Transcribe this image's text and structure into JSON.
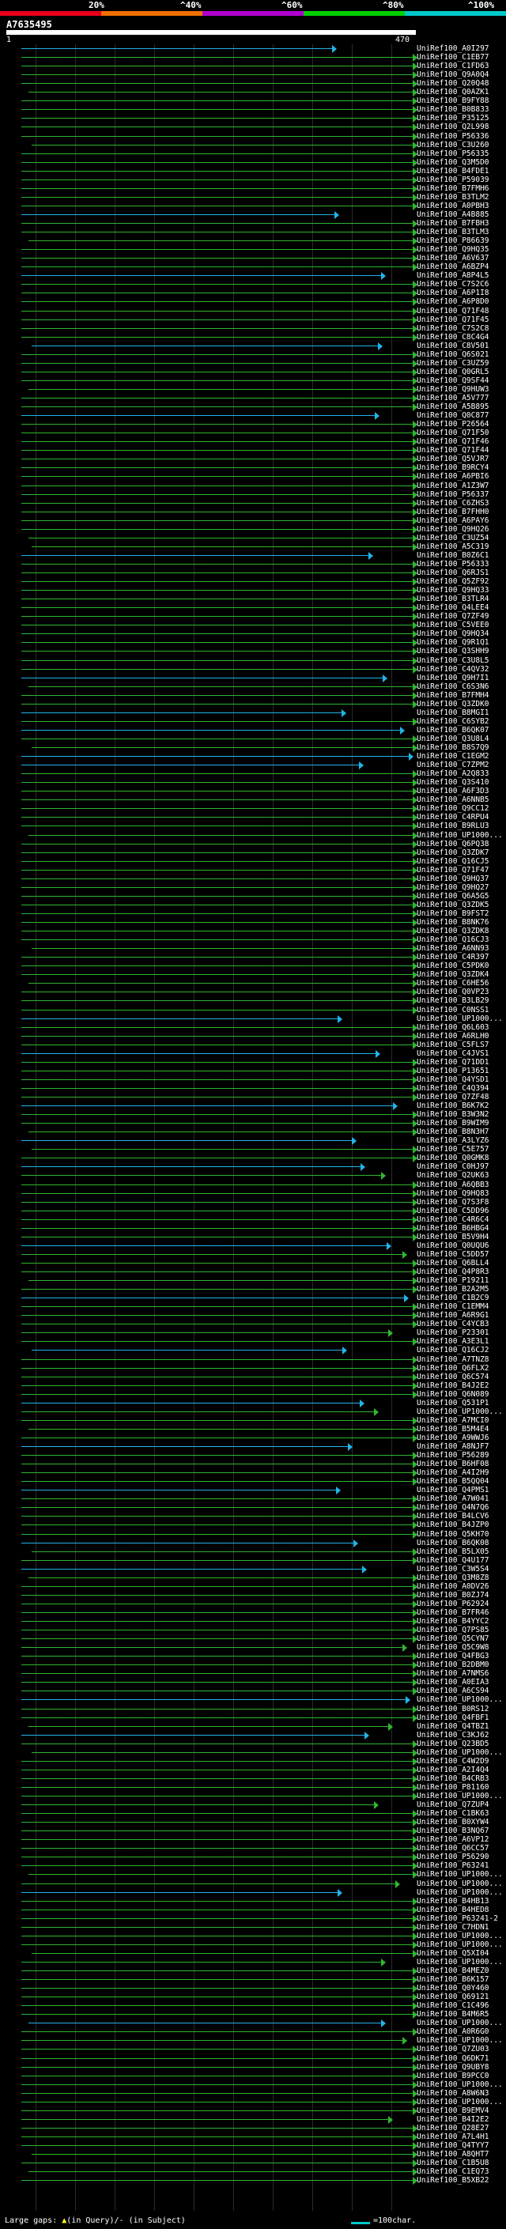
{
  "colors": {
    "scale": [
      "#e8001c",
      "#f07000",
      "#b000d0",
      "#00d000",
      "#00c8c8"
    ],
    "green": "#2fb62f",
    "cyan": "#22b4e8",
    "query_bar": "#ffffff"
  },
  "scale": {
    "labels": [
      "20%",
      "^40%",
      "^60%",
      "^80%",
      "^100%"
    ]
  },
  "query": {
    "name": "A7635495",
    "start": "1",
    "end": "470"
  },
  "hits": [
    {
      "label": "UniRef100_A0I297",
      "color": "cyan"
    },
    {
      "label": "UniRef100_C1EB77",
      "color": "green"
    },
    {
      "label": "UniRef100_C1FD63",
      "color": "green"
    },
    {
      "label": "UniRef100_Q9A0Q4",
      "color": "green"
    },
    {
      "label": "UniRef100_Q20Q48",
      "color": "green"
    },
    {
      "label": "UniRef100_Q0AZK1",
      "color": "green"
    },
    {
      "label": "UniRef100_B9FY88",
      "color": "green"
    },
    {
      "label": "UniRef100_B0B833",
      "color": "green"
    },
    {
      "label": "UniRef100_P35125",
      "color": "green"
    },
    {
      "label": "UniRef100_Q2L998",
      "color": "green"
    },
    {
      "label": "UniRef100_P56336",
      "color": "green"
    },
    {
      "label": "UniRef100_C3U260",
      "color": "green"
    },
    {
      "label": "UniRef100_P56335",
      "color": "green"
    },
    {
      "label": "UniRef100_Q3M5D0",
      "color": "green"
    },
    {
      "label": "UniRef100_B4FDE1",
      "color": "green"
    },
    {
      "label": "UniRef100_P59039",
      "color": "green"
    },
    {
      "label": "UniRef100_B7FMH6",
      "color": "green"
    },
    {
      "label": "UniRef100_B3TLM2",
      "color": "green"
    },
    {
      "label": "UniRef100_A0PBH3",
      "color": "green"
    },
    {
      "label": "UniRef100_A4B885",
      "color": "cyan"
    },
    {
      "label": "UniRef100_B7FBH3",
      "color": "green"
    },
    {
      "label": "UniRef100_B3TLM3",
      "color": "green"
    },
    {
      "label": "UniRef100_P86639",
      "color": "green"
    },
    {
      "label": "UniRef100_Q9HQ35",
      "color": "green"
    },
    {
      "label": "UniRef100_A6V637",
      "color": "green"
    },
    {
      "label": "UniRef100_A6BZP4",
      "color": "green"
    },
    {
      "label": "UniRef100_A8P4L5",
      "color": "cyan"
    },
    {
      "label": "UniRef100_C7S2C6",
      "color": "green"
    },
    {
      "label": "UniRef100_A6P1I8",
      "color": "green"
    },
    {
      "label": "UniRef100_A6P8D0",
      "color": "green"
    },
    {
      "label": "UniRef100_Q71F48",
      "color": "green"
    },
    {
      "label": "UniRef100_Q71F45",
      "color": "green"
    },
    {
      "label": "UniRef100_C7S2C8",
      "color": "green"
    },
    {
      "label": "UniRef100_C8C4G4",
      "color": "green"
    },
    {
      "label": "UniRef100_C8V501",
      "color": "cyan"
    },
    {
      "label": "UniRef100_Q6S021",
      "color": "green"
    },
    {
      "label": "UniRef100_C3UZ59",
      "color": "green"
    },
    {
      "label": "UniRef100_Q0GRL5",
      "color": "green"
    },
    {
      "label": "UniRef100_Q9SF44",
      "color": "green"
    },
    {
      "label": "UniRef100_Q9HUW3",
      "color": "green"
    },
    {
      "label": "UniRef100_A5V777",
      "color": "green"
    },
    {
      "label": "UniRef100_A5B895",
      "color": "green"
    },
    {
      "label": "UniRef100_Q0C877",
      "color": "cyan"
    },
    {
      "label": "UniRef100_P26564",
      "color": "green"
    },
    {
      "label": "UniRef100_Q71F50",
      "color": "green"
    },
    {
      "label": "UniRef100_Q71F46",
      "color": "green"
    },
    {
      "label": "UniRef100_Q71F44",
      "color": "green"
    },
    {
      "label": "UniRef100_Q5VJR7",
      "color": "green"
    },
    {
      "label": "UniRef100_B9RCY4",
      "color": "green"
    },
    {
      "label": "UniRef100_A6PBI6",
      "color": "green"
    },
    {
      "label": "UniRef100_A1Z3W7",
      "color": "green"
    },
    {
      "label": "UniRef100_P56337",
      "color": "green"
    },
    {
      "label": "UniRef100_C6ZHS3",
      "color": "green"
    },
    {
      "label": "UniRef100_B7FHH0",
      "color": "green"
    },
    {
      "label": "UniRef100_A6PAY6",
      "color": "green"
    },
    {
      "label": "UniRef100_Q9HQ26",
      "color": "green"
    },
    {
      "label": "UniRef100_C3UZ54",
      "color": "green"
    },
    {
      "label": "UniRef100_A5C319",
      "color": "green"
    },
    {
      "label": "UniRef100_B0Z6C1",
      "color": "cyan"
    },
    {
      "label": "UniRef100_P56333",
      "color": "green"
    },
    {
      "label": "UniRef100_Q6RJS1",
      "color": "green"
    },
    {
      "label": "UniRef100_Q5ZF92",
      "color": "green"
    },
    {
      "label": "UniRef100_Q9HQ33",
      "color": "green"
    },
    {
      "label": "UniRef100_B3TLR4",
      "color": "green"
    },
    {
      "label": "UniRef100_Q4LEE4",
      "color": "green"
    },
    {
      "label": "UniRef100_Q7ZF49",
      "color": "green"
    },
    {
      "label": "UniRef100_C5VEE0",
      "color": "green"
    },
    {
      "label": "UniRef100_Q9HQ34",
      "color": "green"
    },
    {
      "label": "UniRef100_Q9R1Q1",
      "color": "green"
    },
    {
      "label": "UniRef100_Q3SHH9",
      "color": "green"
    },
    {
      "label": "UniRef100_C3U8L5",
      "color": "green"
    },
    {
      "label": "UniRef100_C4QV32",
      "color": "green"
    },
    {
      "label": "UniRef100_Q9H7I1",
      "color": "cyan"
    },
    {
      "label": "UniRef100_C6S3N6",
      "color": "green"
    },
    {
      "label": "UniRef100_B7FMH4",
      "color": "green"
    },
    {
      "label": "UniRef100_Q3ZDK0",
      "color": "green"
    },
    {
      "label": "UniRef100_B8MGI1",
      "color": "cyan"
    },
    {
      "label": "UniRef100_C6SYB2",
      "color": "green"
    },
    {
      "label": "UniRef100_B6QK07",
      "color": "cyan"
    },
    {
      "label": "UniRef100_Q3U8L4",
      "color": "green"
    },
    {
      "label": "UniRef100_B8S7Q9",
      "color": "green"
    },
    {
      "label": "UniRef100_C1EGM2",
      "color": "cyan"
    },
    {
      "label": "UniRef100_C7ZPM2",
      "color": "cyan"
    },
    {
      "label": "UniRef100_A2Q833",
      "color": "green"
    },
    {
      "label": "UniRef100_Q3S410",
      "color": "green"
    },
    {
      "label": "UniRef100_A6F3D3",
      "color": "green"
    },
    {
      "label": "UniRef100_A6NNB5",
      "color": "green"
    },
    {
      "label": "UniRef100_Q9CC12",
      "color": "green"
    },
    {
      "label": "UniRef100_C4RPU4",
      "color": "green"
    },
    {
      "label": "UniRef100_B9RLU3",
      "color": "green"
    },
    {
      "label": "UniRef100_UP1000...",
      "color": "green"
    },
    {
      "label": "UniRef100_Q6PQ38",
      "color": "green"
    },
    {
      "label": "UniRef100_Q3ZDK7",
      "color": "green"
    },
    {
      "label": "UniRef100_Q16CJ5",
      "color": "green"
    },
    {
      "label": "UniRef100_Q71F47",
      "color": "green"
    },
    {
      "label": "UniRef100_Q9HQ37",
      "color": "green"
    },
    {
      "label": "UniRef100_Q9HQ27",
      "color": "green"
    },
    {
      "label": "UniRef100_Q6A5G5",
      "color": "green"
    },
    {
      "label": "UniRef100_Q3ZDK5",
      "color": "green"
    },
    {
      "label": "UniRef100_B9FST2",
      "color": "green"
    },
    {
      "label": "UniRef100_B8NK76",
      "color": "green"
    },
    {
      "label": "UniRef100_Q3ZDK8",
      "color": "green"
    },
    {
      "label": "UniRef100_Q16CJ3",
      "color": "green"
    },
    {
      "label": "UniRef100_A6NN93",
      "color": "green"
    },
    {
      "label": "UniRef100_C4R397",
      "color": "green"
    },
    {
      "label": "UniRef100_C5PDK0",
      "color": "green"
    },
    {
      "label": "UniRef100_Q3ZDK4",
      "color": "green"
    },
    {
      "label": "UniRef100_C6HE56",
      "color": "green"
    },
    {
      "label": "UniRef100_Q0VP23",
      "color": "green"
    },
    {
      "label": "UniRef100_B3LB29",
      "color": "green"
    },
    {
      "label": "UniRef100_C0NSS1",
      "color": "green"
    },
    {
      "label": "UniRef100_UP1000...",
      "color": "cyan"
    },
    {
      "label": "UniRef100_Q6L603",
      "color": "green"
    },
    {
      "label": "UniRef100_A6RLH0",
      "color": "green"
    },
    {
      "label": "UniRef100_C5FLS7",
      "color": "green"
    },
    {
      "label": "UniRef100_C4JVS1",
      "color": "cyan"
    },
    {
      "label": "UniRef100_Q71DD1",
      "color": "green"
    },
    {
      "label": "UniRef100_P13651",
      "color": "green"
    },
    {
      "label": "UniRef100_Q4YSD1",
      "color": "green"
    },
    {
      "label": "UniRef100_C4Q394",
      "color": "green"
    },
    {
      "label": "UniRef100_Q7ZF48",
      "color": "green"
    },
    {
      "label": "UniRef100_B6K7K2",
      "color": "cyan"
    },
    {
      "label": "UniRef100_B3W3N2",
      "color": "green"
    },
    {
      "label": "UniRef100_B9WIM9",
      "color": "green"
    },
    {
      "label": "UniRef100_B8N3H7",
      "color": "green"
    },
    {
      "label": "UniRef100_A3LYZ6",
      "color": "cyan"
    },
    {
      "label": "UniRef100_C5E757",
      "color": "green"
    },
    {
      "label": "UniRef100_Q0GMK8",
      "color": "green"
    },
    {
      "label": "UniRef100_C0HJ97",
      "color": "cyan"
    },
    {
      "label": "UniRef100_Q2UK63",
      "color": "green"
    },
    {
      "label": "UniRef100_A6QBB3",
      "color": "green"
    },
    {
      "label": "UniRef100_Q9HQ83",
      "color": "green"
    },
    {
      "label": "UniRef100_Q7S3F8",
      "color": "green"
    },
    {
      "label": "UniRef100_C5DD96",
      "color": "green"
    },
    {
      "label": "UniRef100_C4R6C4",
      "color": "green"
    },
    {
      "label": "UniRef100_B6HBG4",
      "color": "green"
    },
    {
      "label": "UniRef100_B5V9H4",
      "color": "green"
    },
    {
      "label": "UniRef100_Q0UQU6",
      "color": "cyan"
    },
    {
      "label": "UniRef100_C5DD57",
      "color": "green"
    },
    {
      "label": "UniRef100_Q6BLL4",
      "color": "green"
    },
    {
      "label": "UniRef100_Q4P8R3",
      "color": "green"
    },
    {
      "label": "UniRef100_P19211",
      "color": "green"
    },
    {
      "label": "UniRef100_B2A2M5",
      "color": "green"
    },
    {
      "label": "UniRef100_C1B2C9",
      "color": "cyan"
    },
    {
      "label": "UniRef100_C1EMM4",
      "color": "green"
    },
    {
      "label": "UniRef100_A6R9G1",
      "color": "green"
    },
    {
      "label": "UniRef100_C4YCB3",
      "color": "green"
    },
    {
      "label": "UniRef100_P23301",
      "color": "green"
    },
    {
      "label": "UniRef100_A3E3L1",
      "color": "green"
    },
    {
      "label": "UniRef100_Q16CJ2",
      "color": "cyan"
    },
    {
      "label": "UniRef100_A7TNZ8",
      "color": "green"
    },
    {
      "label": "UniRef100_Q6FLX2",
      "color": "green"
    },
    {
      "label": "UniRef100_Q6C574",
      "color": "green"
    },
    {
      "label": "UniRef100_B4J2E2",
      "color": "green"
    },
    {
      "label": "UniRef100_Q6N089",
      "color": "green"
    },
    {
      "label": "UniRef100_Q531P1",
      "color": "cyan"
    },
    {
      "label": "UniRef100_UP1000...",
      "color": "green"
    },
    {
      "label": "UniRef100_A7MCI0",
      "color": "green"
    },
    {
      "label": "UniRef100_B5M4E4",
      "color": "green"
    },
    {
      "label": "UniRef100_A9WWJ6",
      "color": "green"
    },
    {
      "label": "UniRef100_A8NJF7",
      "color": "cyan"
    },
    {
      "label": "UniRef100_P56289",
      "color": "green"
    },
    {
      "label": "UniRef100_B6HF08",
      "color": "green"
    },
    {
      "label": "UniRef100_A4I2H9",
      "color": "green"
    },
    {
      "label": "UniRef100_B5QQ04",
      "color": "green"
    },
    {
      "label": "UniRef100_Q4PMS1",
      "color": "cyan"
    },
    {
      "label": "UniRef100_A7W041",
      "color": "green"
    },
    {
      "label": "UniRef100_Q4N7Q6",
      "color": "green"
    },
    {
      "label": "UniRef100_B4LCV6",
      "color": "green"
    },
    {
      "label": "UniRef100_B4JZP0",
      "color": "green"
    },
    {
      "label": "UniRef100_Q5KH70",
      "color": "green"
    },
    {
      "label": "UniRef100_B6QK08",
      "color": "cyan"
    },
    {
      "label": "UniRef100_B5LX05",
      "color": "green"
    },
    {
      "label": "UniRef100_Q4U177",
      "color": "green"
    },
    {
      "label": "UniRef100_C3W5S4",
      "color": "cyan"
    },
    {
      "label": "UniRef100_Q3M8Z8",
      "color": "green"
    },
    {
      "label": "UniRef100_A0DV26",
      "color": "green"
    },
    {
      "label": "UniRef100_B0ZJ74",
      "color": "green"
    },
    {
      "label": "UniRef100_P62924",
      "color": "green"
    },
    {
      "label": "UniRef100_B7FR46",
      "color": "green"
    },
    {
      "label": "UniRef100_B4YYC2",
      "color": "green"
    },
    {
      "label": "UniRef100_Q7PS85",
      "color": "green"
    },
    {
      "label": "UniRef100_Q5CYN7",
      "color": "green"
    },
    {
      "label": "UniRef100_Q5C9W8",
      "color": "green"
    },
    {
      "label": "UniRef100_Q4FBG3",
      "color": "green"
    },
    {
      "label": "UniRef100_B2DBM0",
      "color": "green"
    },
    {
      "label": "UniRef100_A7NMS6",
      "color": "green"
    },
    {
      "label": "UniRef100_A0EIA3",
      "color": "green"
    },
    {
      "label": "UniRef100_A6CS94",
      "color": "green"
    },
    {
      "label": "UniRef100_UP1000...",
      "color": "cyan"
    },
    {
      "label": "UniRef100_B0RS12",
      "color": "green"
    },
    {
      "label": "UniRef100_Q4FBF1",
      "color": "green"
    },
    {
      "label": "UniRef100_Q4TBZ1",
      "color": "green"
    },
    {
      "label": "UniRef100_C3KJ62",
      "color": "cyan"
    },
    {
      "label": "UniRef100_Q23BD5",
      "color": "green"
    },
    {
      "label": "UniRef100_UP1000...",
      "color": "green"
    },
    {
      "label": "UniRef100_C4W2D9",
      "color": "green"
    },
    {
      "label": "UniRef100_A2I4Q4",
      "color": "green"
    },
    {
      "label": "UniRef100_B4CRB3",
      "color": "green"
    },
    {
      "label": "UniRef100_P81160",
      "color": "green"
    },
    {
      "label": "UniRef100_UP1000...",
      "color": "green"
    },
    {
      "label": "UniRef100_Q7ZUP4",
      "color": "green"
    },
    {
      "label": "UniRef100_C1BK63",
      "color": "green"
    },
    {
      "label": "UniRef100_B0XYW4",
      "color": "green"
    },
    {
      "label": "UniRef100_B3NQ67",
      "color": "green"
    },
    {
      "label": "UniRef100_A6VP12",
      "color": "green"
    },
    {
      "label": "UniRef100_Q6CC57",
      "color": "green"
    },
    {
      "label": "UniRef100_P56290",
      "color": "green"
    },
    {
      "label": "UniRef100_P63241",
      "color": "green"
    },
    {
      "label": "UniRef100_UP1000...",
      "color": "green"
    },
    {
      "label": "UniRef100_UP1000...",
      "color": "green"
    },
    {
      "label": "UniRef100_UP1000...",
      "color": "cyan"
    },
    {
      "label": "UniRef100_B4HB13",
      "color": "green"
    },
    {
      "label": "UniRef100_B4HED8",
      "color": "green"
    },
    {
      "label": "UniRef100_P63241-2",
      "color": "green"
    },
    {
      "label": "UniRef100_C7HDN1",
      "color": "green"
    },
    {
      "label": "UniRef100_UP1000...",
      "color": "green"
    },
    {
      "label": "UniRef100_UP1000...",
      "color": "green"
    },
    {
      "label": "UniRef100_Q5XI04",
      "color": "green"
    },
    {
      "label": "UniRef100_UP1000...",
      "color": "green"
    },
    {
      "label": "UniRef100_B4MEZ0",
      "color": "green"
    },
    {
      "label": "UniRef100_B6K157",
      "color": "green"
    },
    {
      "label": "UniRef100_Q0Y460",
      "color": "green"
    },
    {
      "label": "UniRef100_Q69121",
      "color": "green"
    },
    {
      "label": "UniRef100_C1C496",
      "color": "green"
    },
    {
      "label": "UniRef100_B4M6R5",
      "color": "green"
    },
    {
      "label": "UniRef100_UP1000...",
      "color": "cyan"
    },
    {
      "label": "UniRef100_A0R6G0",
      "color": "green"
    },
    {
      "label": "UniRef100_UP1000...",
      "color": "green"
    },
    {
      "label": "UniRef100_Q7ZU03",
      "color": "green"
    },
    {
      "label": "UniRef100_Q6DK71",
      "color": "green"
    },
    {
      "label": "UniRef100_Q9UBY8",
      "color": "green"
    },
    {
      "label": "UniRef100_B9PCC0",
      "color": "green"
    },
    {
      "label": "UniRef100_UP1000...",
      "color": "green"
    },
    {
      "label": "UniRef100_A8W6N3",
      "color": "green"
    },
    {
      "label": "UniRef100_UP1000...",
      "color": "green"
    },
    {
      "label": "UniRef100_B9EMV4",
      "color": "green"
    },
    {
      "label": "UniRef100_B4I2E2",
      "color": "green"
    },
    {
      "label": "UniRef100_Q28E27",
      "color": "green"
    },
    {
      "label": "UniRef100_A7L4H1",
      "color": "green"
    },
    {
      "label": "UniRef100_Q4TYY7",
      "color": "green"
    },
    {
      "label": "UniRef100_A8QHT7",
      "color": "green"
    },
    {
      "label": "UniRef100_C1B5U8",
      "color": "green"
    },
    {
      "label": "UniRef100_C1EQ73",
      "color": "green"
    },
    {
      "label": "UniRef100_B5XB22",
      "color": "green"
    }
  ],
  "footer": {
    "prefix": "Large gaps: ",
    "ins_glyph": "▲",
    "ins_text": "(in Query)/",
    "sub_glyph": "-",
    "sub_text": " (in Subject)",
    "legend": "=100char."
  }
}
